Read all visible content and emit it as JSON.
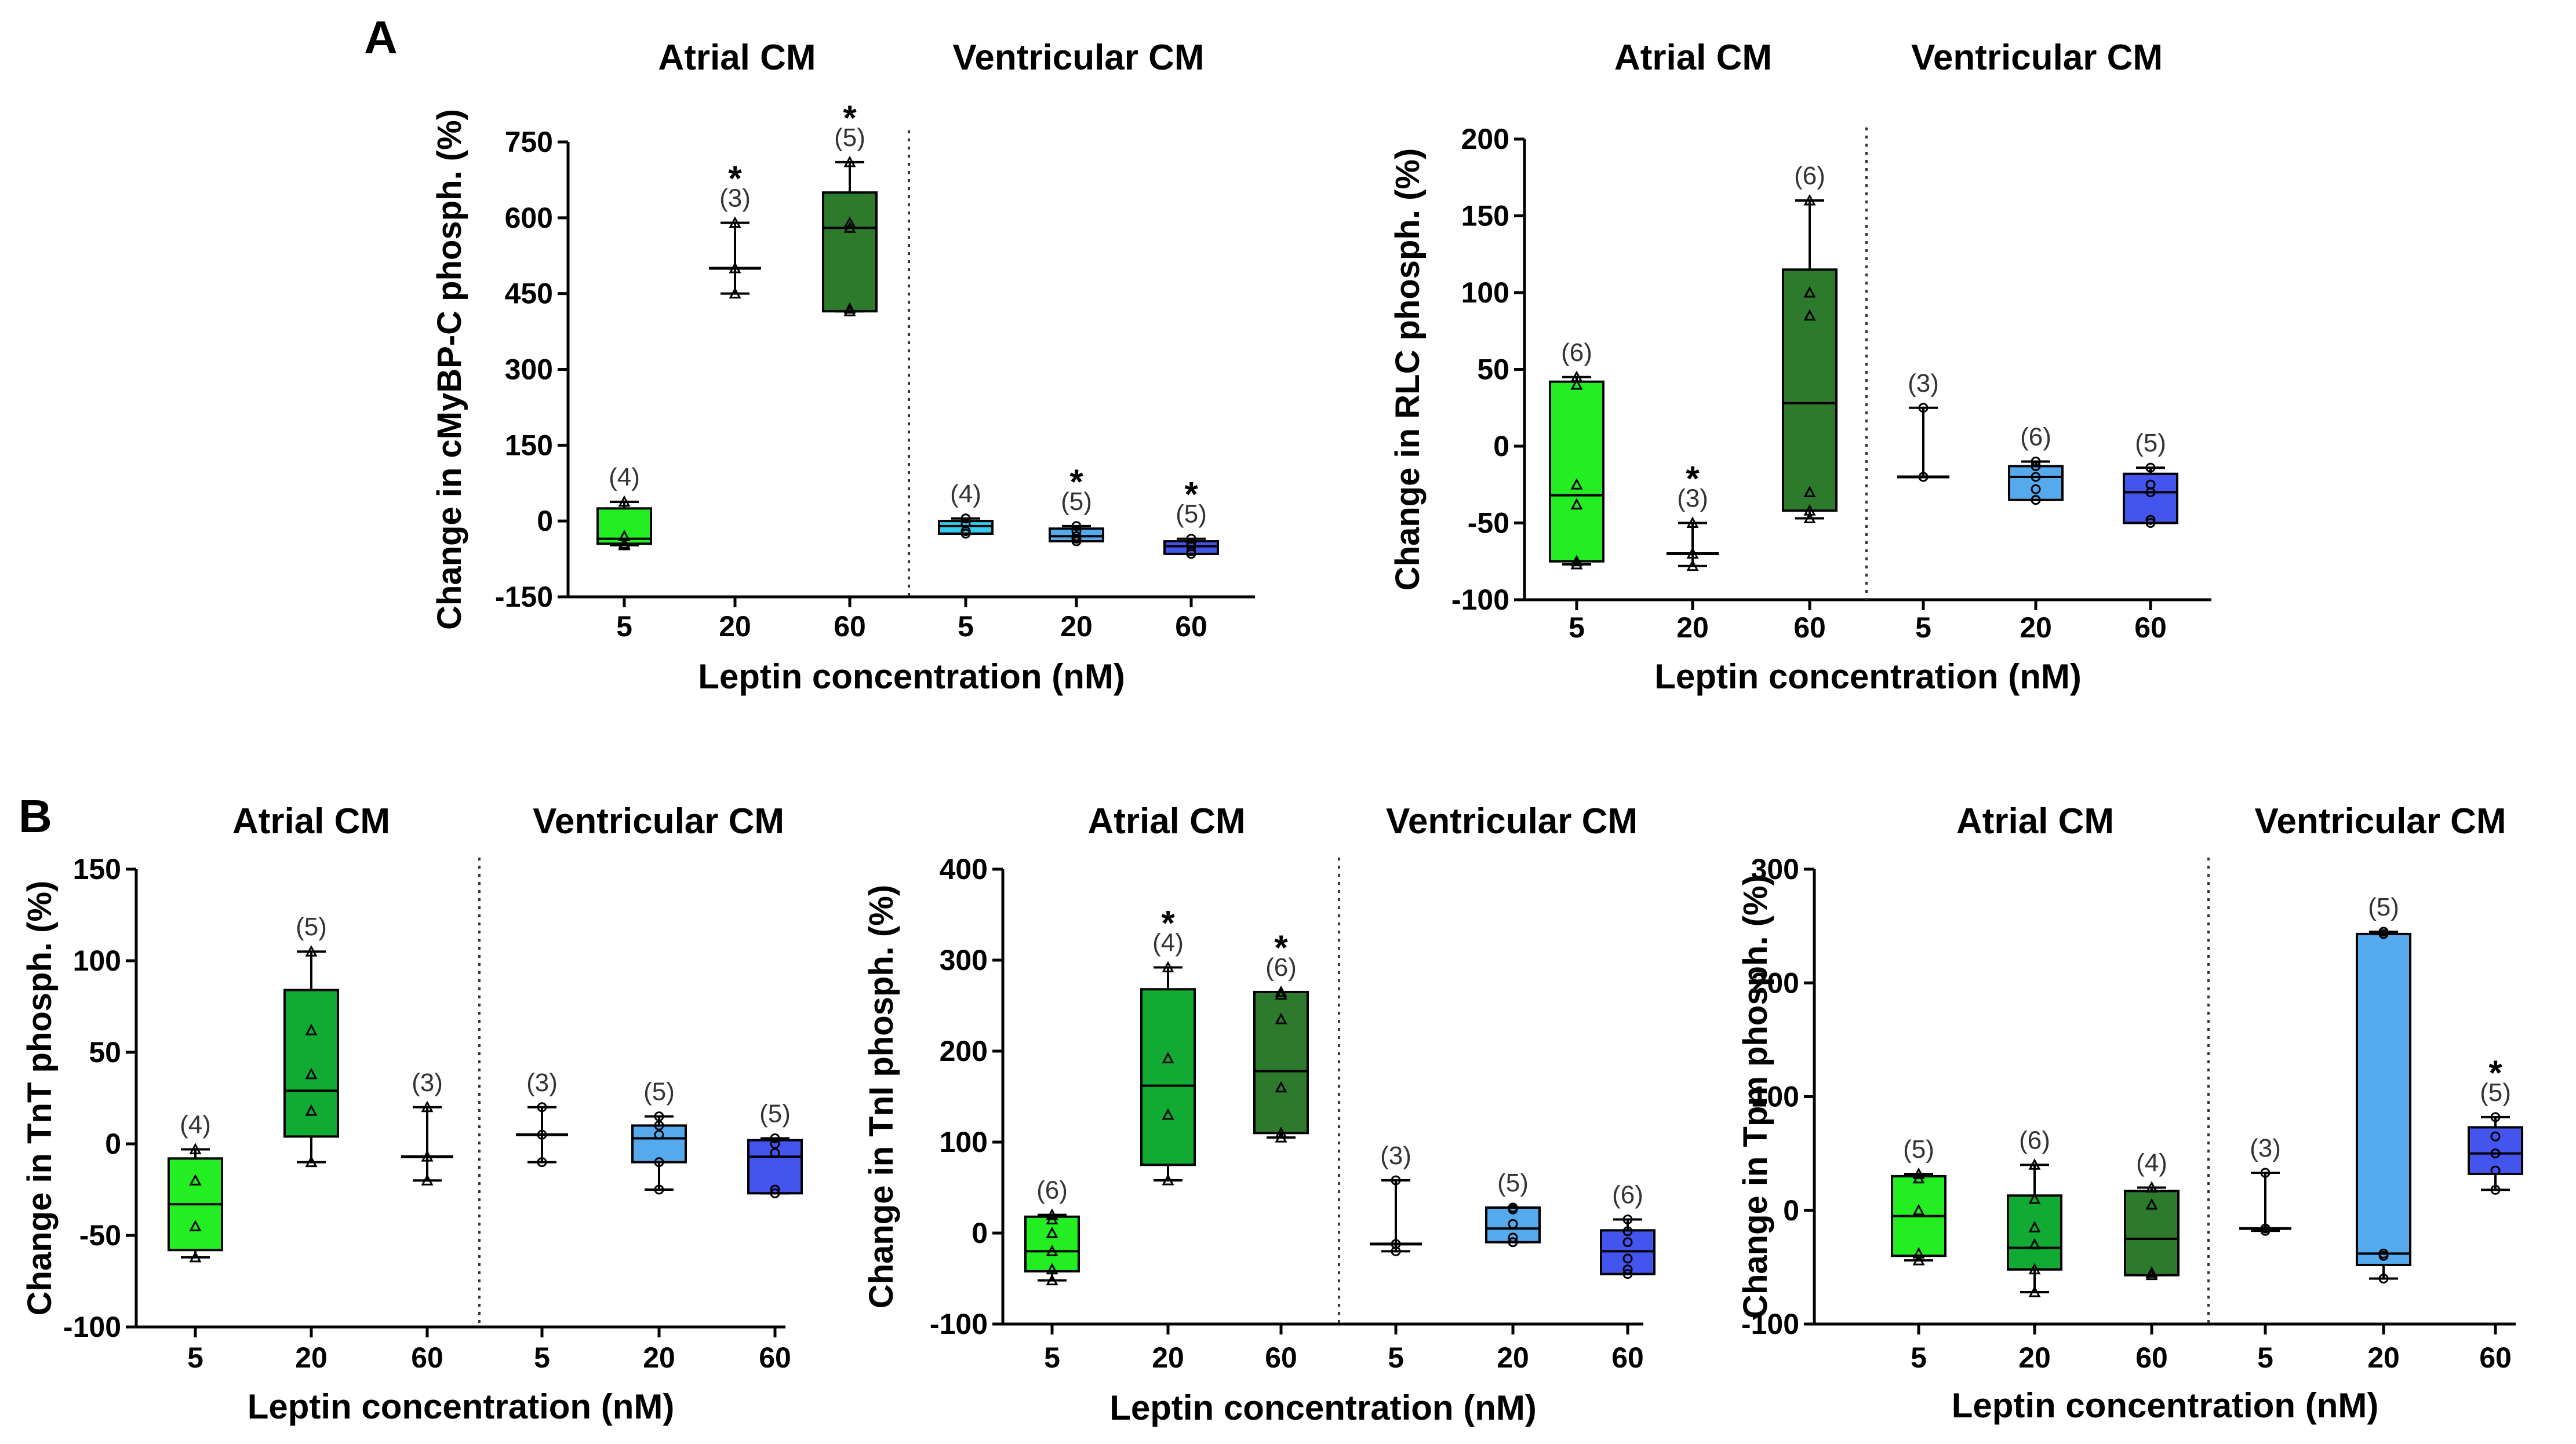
{
  "figure": {
    "panel_letters": [
      "A",
      "B"
    ]
  },
  "chart_data": [
    {
      "type": "box",
      "panel": "A",
      "ylabel": "Change in cMyBP-C phosph. (%)",
      "xlabel": "Leptin concentration (nM)",
      "ylim": [
        -150,
        750
      ],
      "yticks": [
        "750",
        "600",
        "450",
        "300",
        "150",
        "0",
        "-150"
      ],
      "yticks_values": [
        750,
        600,
        450,
        300,
        150,
        0,
        -150
      ],
      "groups": [
        {
          "title": "Atrial CM",
          "categories": [
            "5",
            "20",
            "60"
          ]
        },
        {
          "title": "Ventricular CM",
          "categories": [
            "5",
            "20",
            "60"
          ]
        }
      ],
      "boxes": [
        {
          "group": "Atrial CM",
          "x": "5",
          "color": "#22ee22",
          "min": -48,
          "q1": -45,
          "median": -35,
          "q3": 25,
          "max": 38,
          "n": "(4)",
          "sig": "",
          "box": true,
          "points": [
            38,
            -30,
            -45,
            -48
          ],
          "marker": "triangle"
        },
        {
          "group": "Atrial CM",
          "x": "20",
          "color": "#11aa33",
          "min": 450,
          "q1": 500,
          "median": 500,
          "q3": 500,
          "max": 590,
          "n": "(3)",
          "sig": "*",
          "box": false,
          "points": [
            590,
            500,
            450
          ],
          "marker": "triangle"
        },
        {
          "group": "Atrial CM",
          "x": "60",
          "color": "#2d7a2d",
          "min": 415,
          "q1": 415,
          "median": 580,
          "q3": 650,
          "max": 710,
          "n": "(5)",
          "sig": "*",
          "box": true,
          "points": [
            710,
            590,
            580,
            420,
            415
          ],
          "marker": "triangle"
        },
        {
          "group": "Ventricular CM",
          "x": "5",
          "color": "#33ccee",
          "min": -25,
          "q1": -25,
          "median": -10,
          "q3": 0,
          "max": 5,
          "n": "(4)",
          "sig": "",
          "box": true,
          "points": [
            5,
            -5,
            -20,
            -25
          ],
          "marker": "circle"
        },
        {
          "group": "Ventricular CM",
          "x": "20",
          "color": "#55aaee",
          "min": -40,
          "q1": -40,
          "median": -30,
          "q3": -15,
          "max": -10,
          "n": "(5)",
          "sig": "*",
          "box": true,
          "points": [
            -10,
            -20,
            -30,
            -35,
            -40
          ],
          "marker": "circle"
        },
        {
          "group": "Ventricular CM",
          "x": "60",
          "color": "#4455ee",
          "min": -65,
          "q1": -65,
          "median": -50,
          "q3": -40,
          "max": -35,
          "n": "(5)",
          "sig": "*",
          "box": true,
          "points": [
            -35,
            -45,
            -50,
            -60,
            -65
          ],
          "marker": "circle"
        }
      ]
    },
    {
      "type": "box",
      "panel": "A",
      "ylabel": "Change in RLC phosph. (%)",
      "xlabel": "Leptin concentration (nM)",
      "ylim": [
        -100,
        200
      ],
      "yticks": [
        "200",
        "150",
        "100",
        "50",
        "0",
        "-50",
        "-100"
      ],
      "yticks_values": [
        200,
        150,
        100,
        50,
        0,
        -50,
        -100
      ],
      "groups": [
        {
          "title": "Atrial CM",
          "categories": [
            "5",
            "20",
            "60"
          ]
        },
        {
          "title": "Ventricular CM",
          "categories": [
            "5",
            "20",
            "60"
          ]
        }
      ],
      "boxes": [
        {
          "group": "Atrial CM",
          "x": "5",
          "color": "#22ee22",
          "min": -77,
          "q1": -75,
          "median": -32,
          "q3": 42,
          "max": 45,
          "n": "(6)",
          "sig": "",
          "box": true,
          "points": [
            45,
            40,
            -25,
            -38,
            -75,
            -77
          ],
          "marker": "triangle"
        },
        {
          "group": "Atrial CM",
          "x": "20",
          "color": "#11aa33",
          "min": -78,
          "q1": -70,
          "median": -70,
          "q3": -70,
          "max": -50,
          "n": "(3)",
          "sig": "*",
          "box": false,
          "points": [
            -50,
            -70,
            -78
          ],
          "marker": "triangle"
        },
        {
          "group": "Atrial CM",
          "x": "60",
          "color": "#2d7a2d",
          "min": -47,
          "q1": -42,
          "median": 28,
          "q3": 115,
          "max": 160,
          "n": "(6)",
          "sig": "",
          "box": true,
          "points": [
            160,
            100,
            85,
            -30,
            -42,
            -47
          ],
          "marker": "triangle"
        },
        {
          "group": "Ventricular CM",
          "x": "5",
          "color": "#33ccee",
          "min": -20,
          "q1": -20,
          "median": -20,
          "q3": -20,
          "max": 25,
          "n": "(3)",
          "sig": "",
          "box": false,
          "points": [
            25,
            -20,
            -20
          ],
          "marker": "circle"
        },
        {
          "group": "Ventricular CM",
          "x": "20",
          "color": "#55aaee",
          "min": -35,
          "q1": -35,
          "median": -20,
          "q3": -13,
          "max": -10,
          "n": "(6)",
          "sig": "",
          "box": true,
          "points": [
            -10,
            -13,
            -20,
            -28,
            -35,
            -35
          ],
          "marker": "circle"
        },
        {
          "group": "Ventricular CM",
          "x": "60",
          "color": "#4455ee",
          "min": -50,
          "q1": -50,
          "median": -30,
          "q3": -18,
          "max": -14,
          "n": "(5)",
          "sig": "",
          "box": true,
          "points": [
            -14,
            -25,
            -30,
            -48,
            -50
          ],
          "marker": "circle"
        }
      ]
    },
    {
      "type": "box",
      "panel": "B",
      "ylabel": "Change in TnT phosph. (%)",
      "xlabel": "Leptin concentration (nM)",
      "ylim": [
        -100,
        150
      ],
      "yticks": [
        "150",
        "100",
        "50",
        "0",
        "-50",
        "-100"
      ],
      "yticks_values": [
        150,
        100,
        50,
        0,
        -50,
        -100
      ],
      "groups": [
        {
          "title": "Atrial CM",
          "categories": [
            "5",
            "20",
            "60"
          ]
        },
        {
          "title": "Ventricular CM",
          "categories": [
            "5",
            "20",
            "60"
          ]
        }
      ],
      "boxes": [
        {
          "group": "Atrial CM",
          "x": "5",
          "color": "#22ee22",
          "min": -62,
          "q1": -58,
          "median": -33,
          "q3": -8,
          "max": -3,
          "n": "(4)",
          "sig": "",
          "box": true,
          "points": [
            -3,
            -20,
            -45,
            -62
          ],
          "marker": "triangle"
        },
        {
          "group": "Atrial CM",
          "x": "20",
          "color": "#11aa33",
          "min": -10,
          "q1": 4,
          "median": 29,
          "q3": 84,
          "max": 105,
          "n": "(5)",
          "sig": "",
          "box": true,
          "points": [
            105,
            62,
            38,
            18,
            -10
          ],
          "marker": "triangle"
        },
        {
          "group": "Atrial CM",
          "x": "60",
          "color": "#2d7a2d",
          "min": -20,
          "q1": -7,
          "median": -7,
          "q3": -7,
          "max": 20,
          "n": "(3)",
          "sig": "",
          "box": false,
          "points": [
            20,
            -7,
            -20
          ],
          "marker": "triangle"
        },
        {
          "group": "Ventricular CM",
          "x": "5",
          "color": "#33ccee",
          "min": -10,
          "q1": 5,
          "median": 5,
          "q3": 5,
          "max": 20,
          "n": "(3)",
          "sig": "",
          "box": false,
          "points": [
            20,
            5,
            -10
          ],
          "marker": "circle"
        },
        {
          "group": "Ventricular CM",
          "x": "20",
          "color": "#55aaee",
          "min": -25,
          "q1": -10,
          "median": 3,
          "q3": 10,
          "max": 15,
          "n": "(5)",
          "sig": "",
          "box": true,
          "points": [
            15,
            10,
            5,
            -10,
            -25
          ],
          "marker": "circle"
        },
        {
          "group": "Ventricular CM",
          "x": "60",
          "color": "#4455ee",
          "min": -27,
          "q1": -27,
          "median": -7,
          "q3": 2,
          "max": 3,
          "n": "(5)",
          "sig": "",
          "box": true,
          "points": [
            3,
            0,
            -5,
            -25,
            -27
          ],
          "marker": "circle"
        }
      ]
    },
    {
      "type": "box",
      "panel": "B",
      "ylabel": "Change in TnI phosph. (%)",
      "xlabel": "Leptin concentration (nM)",
      "ylim": [
        -100,
        400
      ],
      "yticks": [
        "400",
        "300",
        "200",
        "100",
        "0",
        "-100"
      ],
      "yticks_values": [
        400,
        300,
        200,
        100,
        0,
        -100
      ],
      "groups": [
        {
          "title": "Atrial CM",
          "categories": [
            "5",
            "20",
            "60"
          ]
        },
        {
          "title": "Ventricular CM",
          "categories": [
            "5",
            "20",
            "60"
          ]
        }
      ],
      "boxes": [
        {
          "group": "Atrial CM",
          "x": "5",
          "color": "#22ee22",
          "min": -52,
          "q1": -42,
          "median": -20,
          "q3": 18,
          "max": 20,
          "n": "(6)",
          "sig": "",
          "box": true,
          "points": [
            20,
            15,
            0,
            -20,
            -40,
            -52
          ],
          "marker": "triangle"
        },
        {
          "group": "Atrial CM",
          "x": "20",
          "color": "#11aa33",
          "min": 58,
          "q1": 75,
          "median": 162,
          "q3": 268,
          "max": 292,
          "n": "(4)",
          "sig": "*",
          "box": true,
          "points": [
            292,
            192,
            130,
            58
          ],
          "marker": "triangle"
        },
        {
          "group": "Atrial CM",
          "x": "60",
          "color": "#2d7a2d",
          "min": 105,
          "q1": 110,
          "median": 178,
          "q3": 265,
          "max": 265,
          "n": "(6)",
          "sig": "*",
          "box": true,
          "points": [
            265,
            262,
            235,
            160,
            110,
            105
          ],
          "marker": "triangle"
        },
        {
          "group": "Ventricular CM",
          "x": "5",
          "color": "#33ccee",
          "min": -20,
          "q1": -12,
          "median": -12,
          "q3": -12,
          "max": 58,
          "n": "(3)",
          "sig": "",
          "box": false,
          "points": [
            58,
            -12,
            -20
          ],
          "marker": "circle"
        },
        {
          "group": "Ventricular CM",
          "x": "20",
          "color": "#55aaee",
          "min": -10,
          "q1": -10,
          "median": 5,
          "q3": 28,
          "max": 28,
          "n": "(5)",
          "sig": "",
          "box": true,
          "points": [
            28,
            26,
            10,
            -5,
            -10
          ],
          "marker": "circle"
        },
        {
          "group": "Ventricular CM",
          "x": "60",
          "color": "#4455ee",
          "min": -45,
          "q1": -45,
          "median": -20,
          "q3": 3,
          "max": 15,
          "n": "(6)",
          "sig": "",
          "box": true,
          "points": [
            15,
            2,
            -10,
            -28,
            -40,
            -45
          ],
          "marker": "circle"
        }
      ]
    },
    {
      "type": "box",
      "panel": "B",
      "ylabel": "Change in Tpm phosph. (%)",
      "xlabel": "Leptin concentration (nM)",
      "ylim": [
        -100,
        300
      ],
      "yticks": [
        "300",
        "200",
        "100",
        "0",
        "-100"
      ],
      "yticks_values": [
        300,
        200,
        100,
        0,
        -100
      ],
      "groups": [
        {
          "title": "Atrial CM",
          "categories": [
            "5",
            "20",
            "60"
          ]
        },
        {
          "title": "Ventricular CM",
          "categories": [
            "5",
            "20",
            "60"
          ]
        }
      ],
      "boxes": [
        {
          "group": "Atrial CM",
          "x": "5",
          "color": "#22ee22",
          "min": -44,
          "q1": -40,
          "median": -5,
          "q3": 30,
          "max": 32,
          "n": "(5)",
          "sig": "",
          "box": true,
          "points": [
            32,
            28,
            0,
            -38,
            -44
          ],
          "marker": "triangle"
        },
        {
          "group": "Atrial CM",
          "x": "20",
          "color": "#11aa33",
          "min": -72,
          "q1": -52,
          "median": -33,
          "q3": 13,
          "max": 40,
          "n": "(6)",
          "sig": "",
          "box": true,
          "points": [
            40,
            10,
            -15,
            -30,
            -52,
            -72
          ],
          "marker": "triangle"
        },
        {
          "group": "Atrial CM",
          "x": "60",
          "color": "#2d7a2d",
          "min": -57,
          "q1": -57,
          "median": -25,
          "q3": 17,
          "max": 20,
          "n": "(4)",
          "sig": "",
          "box": true,
          "points": [
            20,
            5,
            -55,
            -57
          ],
          "marker": "triangle"
        },
        {
          "group": "Ventricular CM",
          "x": "5",
          "color": "#33ccee",
          "min": -18,
          "q1": -16,
          "median": -16,
          "q3": -16,
          "max": 33,
          "n": "(3)",
          "sig": "",
          "box": false,
          "points": [
            33,
            -16,
            -18
          ],
          "marker": "circle"
        },
        {
          "group": "Ventricular CM",
          "x": "20",
          "color": "#55aaee",
          "min": -60,
          "q1": -48,
          "median": -38,
          "q3": 243,
          "max": 245,
          "n": "(5)",
          "sig": "",
          "box": true,
          "points": [
            245,
            243,
            -38,
            -40,
            -60
          ],
          "marker": "circle"
        },
        {
          "group": "Ventricular CM",
          "x": "60",
          "color": "#4455ee",
          "min": 18,
          "q1": 32,
          "median": 50,
          "q3": 73,
          "max": 82,
          "n": "(5)",
          "sig": "*",
          "box": true,
          "points": [
            82,
            65,
            50,
            35,
            18
          ],
          "marker": "circle"
        }
      ]
    }
  ]
}
